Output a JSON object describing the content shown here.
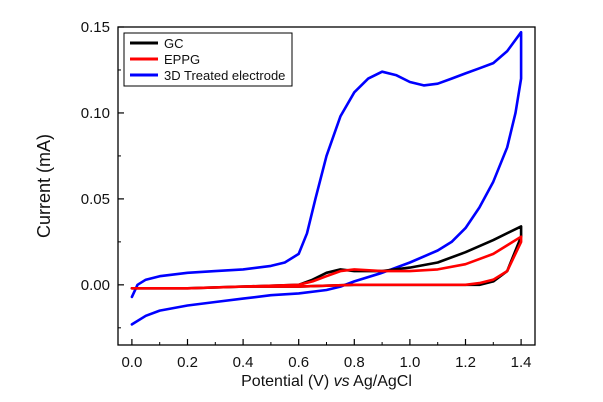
{
  "chart_data": {
    "type": "line",
    "xlabel_parts": [
      "Potential (V) ",
      "vs",
      " Ag/AgCl"
    ],
    "ylabel": "Current (mA)",
    "xlim": [
      -0.05,
      1.45
    ],
    "ylim": [
      -0.035,
      0.15
    ],
    "xticks": [
      0.0,
      0.2,
      0.4,
      0.6,
      0.8,
      1.0,
      1.2,
      1.4
    ],
    "xtick_labels": [
      "0.0",
      "0.2",
      "0.4",
      "0.6",
      "0.8",
      "1.0",
      "1.2",
      "1.4"
    ],
    "yticks": [
      0.0,
      0.05,
      0.1,
      0.15
    ],
    "ytick_labels": [
      "0.00",
      "0.05",
      "0.10",
      "0.15"
    ],
    "legend_position": "top-left",
    "grid": false,
    "series": [
      {
        "name": "GC",
        "color": "#000000",
        "x": [
          0.0,
          0.2,
          0.4,
          0.6,
          0.65,
          0.7,
          0.75,
          0.8,
          0.9,
          1.0,
          1.1,
          1.2,
          1.3,
          1.4,
          1.4,
          1.35,
          1.3,
          1.25,
          1.2,
          1.1,
          1.0,
          0.9,
          0.8,
          0.6,
          0.4,
          0.2,
          0.0
        ],
        "y": [
          -0.002,
          -0.002,
          -0.001,
          0.0,
          0.003,
          0.007,
          0.009,
          0.008,
          0.008,
          0.01,
          0.013,
          0.019,
          0.026,
          0.034,
          0.028,
          0.008,
          0.002,
          0.0,
          0.0,
          0.0,
          0.0,
          0.0,
          0.0,
          -0.001,
          -0.001,
          -0.002,
          -0.002
        ]
      },
      {
        "name": "EPPG",
        "color": "#ff0000",
        "x": [
          0.0,
          0.2,
          0.4,
          0.6,
          0.65,
          0.7,
          0.75,
          0.8,
          0.9,
          1.0,
          1.1,
          1.2,
          1.3,
          1.4,
          1.4,
          1.35,
          1.3,
          1.25,
          1.2,
          1.1,
          1.0,
          0.9,
          0.8,
          0.6,
          0.4,
          0.2,
          0.0
        ],
        "y": [
          -0.002,
          -0.002,
          -0.001,
          0.0,
          0.002,
          0.005,
          0.008,
          0.009,
          0.008,
          0.008,
          0.009,
          0.012,
          0.018,
          0.028,
          0.025,
          0.008,
          0.003,
          0.001,
          0.0,
          0.0,
          0.0,
          0.0,
          0.0,
          -0.001,
          -0.001,
          -0.002,
          -0.002
        ]
      },
      {
        "name": "3D Treated electrode",
        "color": "#0000ff",
        "x": [
          0.0,
          0.02,
          0.05,
          0.1,
          0.2,
          0.3,
          0.4,
          0.5,
          0.55,
          0.6,
          0.63,
          0.66,
          0.7,
          0.75,
          0.8,
          0.85,
          0.9,
          0.95,
          1.0,
          1.05,
          1.1,
          1.15,
          1.2,
          1.25,
          1.3,
          1.35,
          1.4,
          1.4,
          1.38,
          1.35,
          1.3,
          1.25,
          1.2,
          1.15,
          1.1,
          1.0,
          0.9,
          0.8,
          0.75,
          0.7,
          0.6,
          0.5,
          0.4,
          0.3,
          0.2,
          0.1,
          0.05,
          0.0
        ],
        "y": [
          -0.007,
          0.0,
          0.003,
          0.005,
          0.007,
          0.008,
          0.009,
          0.011,
          0.013,
          0.018,
          0.03,
          0.05,
          0.075,
          0.098,
          0.112,
          0.12,
          0.124,
          0.122,
          0.118,
          0.116,
          0.117,
          0.12,
          0.123,
          0.126,
          0.129,
          0.136,
          0.147,
          0.12,
          0.1,
          0.08,
          0.06,
          0.045,
          0.033,
          0.025,
          0.02,
          0.013,
          0.007,
          0.002,
          -0.001,
          -0.003,
          -0.005,
          -0.006,
          -0.008,
          -0.01,
          -0.012,
          -0.015,
          -0.018,
          -0.023
        ]
      }
    ]
  }
}
